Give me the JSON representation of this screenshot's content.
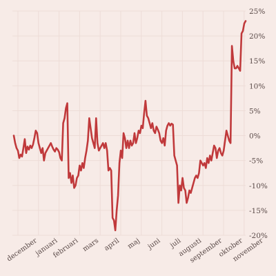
{
  "colors": {
    "background": "#f7ebe7",
    "grid": "#eddcd7",
    "line": "#c0393b",
    "text": "#5a4a48"
  },
  "chart_data": {
    "type": "line",
    "title": "",
    "xlabel": "",
    "ylabel": "",
    "grid": true,
    "legend": "none",
    "ylim": [
      -20,
      25
    ],
    "y_ticks": [
      -20,
      -15,
      -10,
      -5,
      0,
      5,
      10,
      15,
      20,
      25
    ],
    "y_tick_labels": [
      "-20%",
      "-15%",
      "-10%",
      "-5%",
      "0%",
      "5%",
      "10%",
      "15%",
      "20%",
      "25%"
    ],
    "x_month_labels": [
      "december",
      "januari",
      "februari",
      "mars",
      "april",
      "maj",
      "juni",
      "juli",
      "augusti",
      "september",
      "oktober",
      "november"
    ],
    "series": [
      {
        "values": [
          0,
          -1.5,
          -2.5,
          -3,
          -4.5,
          -3.8,
          -4.2,
          -2.5,
          -0.7,
          -3.5,
          -2.2,
          -2.8,
          -2,
          -2.5,
          -1.8,
          -0.5,
          1,
          0.5,
          -1.5,
          -2.5,
          -3.5,
          -2.5,
          -5,
          -3.5,
          -3,
          -2.5,
          -2,
          -1.5,
          -2.2,
          -2.8,
          -3.2,
          -2.5,
          -2.8,
          -3.3,
          -4.5,
          -5,
          2.5,
          3.5,
          5.5,
          6.5,
          -8.5,
          -7.5,
          -9.5,
          -8,
          -10.5,
          -10,
          -8.5,
          -8,
          -6,
          -7,
          -5.5,
          -6.5,
          -4.5,
          -3,
          -1,
          3.5,
          1.5,
          -0.5,
          -1.5,
          -2.5,
          3.5,
          -1.5,
          -3,
          -2.5,
          -2,
          -1.5,
          -2.5,
          -1.5,
          -3,
          -7,
          -6.5,
          -7,
          -16.5,
          -17,
          -19,
          -15,
          -12,
          -5.5,
          -3,
          -4.5,
          0.5,
          -0.5,
          -2.5,
          -1,
          -2.5,
          -1,
          -2,
          -1.5,
          0.5,
          -1.5,
          -0.5,
          1,
          0.5,
          2,
          1.5,
          4.5,
          7,
          4,
          3.5,
          2.5,
          1.5,
          2.5,
          1,
          0.5,
          1.8,
          1.2,
          0.5,
          -1,
          -1.5,
          -0.5,
          -2,
          1,
          2,
          2.5,
          2,
          2.4,
          2.2,
          -4,
          -5,
          -6,
          -13.5,
          -10,
          -11,
          -8.5,
          -10.5,
          -11,
          -13.5,
          -12.5,
          -11,
          -11.5,
          -10.5,
          -9.5,
          -8.5,
          -8,
          -8.5,
          -7.5,
          -5,
          -5.5,
          -6,
          -5.5,
          -6.5,
          -4.5,
          -5.5,
          -4,
          -5,
          -3.5,
          -2,
          -2.5,
          -4.5,
          -3,
          -2.5,
          -3.5,
          -4,
          -3,
          -1,
          1,
          0,
          -1,
          -1.5,
          18,
          15,
          13.5,
          13.5,
          14,
          13.5,
          13,
          20.5,
          21,
          22.5,
          23
        ]
      }
    ]
  }
}
